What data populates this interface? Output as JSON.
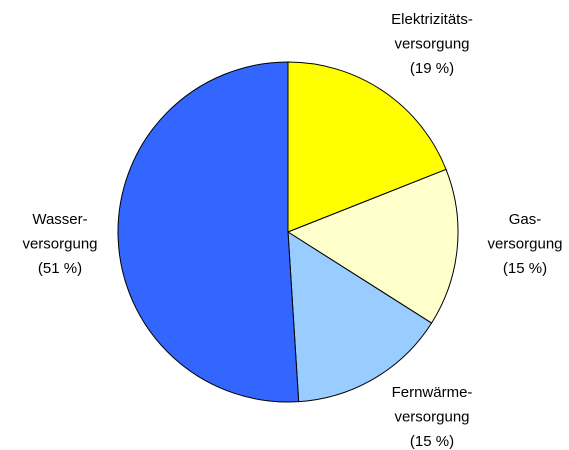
{
  "chart_data": {
    "type": "pie",
    "categories": [
      [
        "Elektrizitäts-",
        "versorgung"
      ],
      [
        "Gas-",
        "versorgung"
      ],
      [
        "Fernwärme-",
        "versorgung"
      ],
      [
        "Wasser-",
        "versorgung"
      ]
    ],
    "values": [
      19,
      15,
      15,
      51
    ],
    "value_labels": [
      "(19 %)",
      "(15 %)",
      "(15 %)",
      "(51 %)"
    ],
    "colors": [
      "#ffff00",
      "#ffffcc",
      "#99ccff",
      "#3366ff"
    ]
  }
}
